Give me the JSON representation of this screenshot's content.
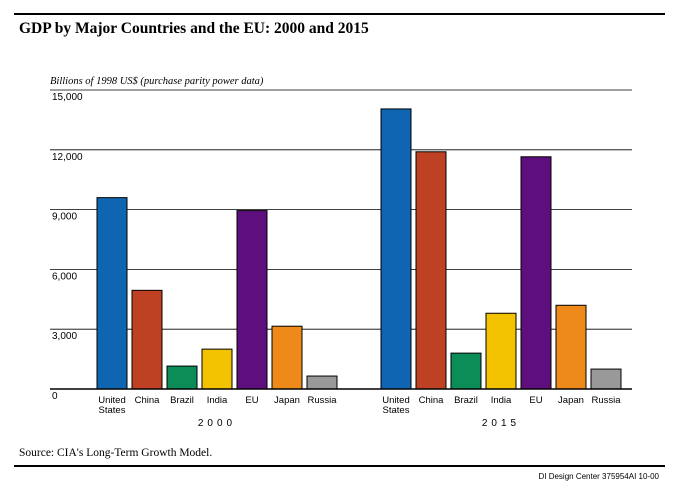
{
  "header": {
    "title": "GDP by Major Countries and the EU: 2000 and 2015"
  },
  "footer": {
    "source": "Source: CIA's Long-Term Growth Model.",
    "credit": "DI Design Center  375954AI 10-00"
  },
  "chart_data": {
    "type": "bar",
    "title": "GDP by Major Countries and the EU: 2000 and 2015",
    "ylabel": "Billions of 1998 US$ (purchase parity power data)",
    "xlabel": "",
    "ylim": [
      0,
      15000
    ],
    "yticks": [
      0,
      3000,
      6000,
      9000,
      12000,
      15000
    ],
    "ytick_labels": [
      "0",
      "3,000",
      "6,000",
      "9,000",
      "12,000",
      "15,000"
    ],
    "grid": true,
    "groups": [
      {
        "label": "2000",
        "categories": [
          "United States",
          "China",
          "Brazil",
          "India",
          "EU",
          "Japan",
          "Russia"
        ],
        "category_lines": [
          [
            "United",
            "States"
          ],
          [
            "China"
          ],
          [
            "Brazil"
          ],
          [
            "India"
          ],
          [
            "EU"
          ],
          [
            "Japan"
          ],
          [
            "Russia"
          ]
        ],
        "values": [
          9600,
          4950,
          1150,
          2000,
          8950,
          3150,
          650
        ]
      },
      {
        "label": "2015",
        "categories": [
          "United States",
          "China",
          "Brazil",
          "India",
          "EU",
          "Japan",
          "Russia"
        ],
        "category_lines": [
          [
            "United",
            "States"
          ],
          [
            "China"
          ],
          [
            "Brazil"
          ],
          [
            "India"
          ],
          [
            "EU"
          ],
          [
            "Japan"
          ],
          [
            "Russia"
          ]
        ],
        "values": [
          14050,
          11900,
          1800,
          3800,
          11650,
          4200,
          1000
        ]
      }
    ],
    "colors": [
      "#0f65b1",
      "#bf4124",
      "#0c8c56",
      "#f3c200",
      "#5e0f7d",
      "#ee8a1a",
      "#999999"
    ]
  }
}
